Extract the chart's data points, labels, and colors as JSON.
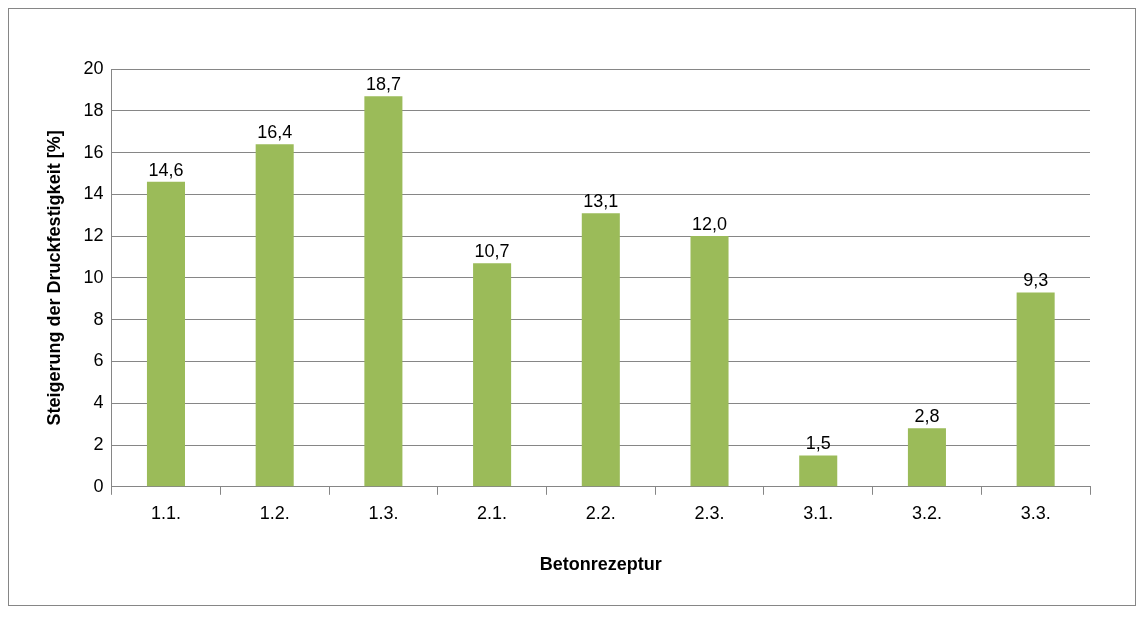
{
  "chart_data": {
    "type": "bar",
    "xlabel": "Betonrezeptur",
    "ylabel": "Steigerung der Druckfestigkeit [%]",
    "categories": [
      "1.1.",
      "1.2.",
      "1.3.",
      "2.1.",
      "2.2.",
      "2.3.",
      "3.1.",
      "3.2.",
      "3.3."
    ],
    "values": [
      14.6,
      16.4,
      18.7,
      10.7,
      13.1,
      12.0,
      1.5,
      2.8,
      9.3
    ],
    "value_labels": [
      "14,6",
      "16,4",
      "18,7",
      "10,7",
      "13,1",
      "12,0",
      "1,5",
      "2,8",
      "9,3"
    ],
    "color": "#9bbb59",
    "ylim": [
      0,
      20
    ],
    "yticks": [
      0,
      2,
      4,
      6,
      8,
      10,
      12,
      14,
      16,
      18,
      20
    ],
    "grid": "y",
    "legend": false
  }
}
